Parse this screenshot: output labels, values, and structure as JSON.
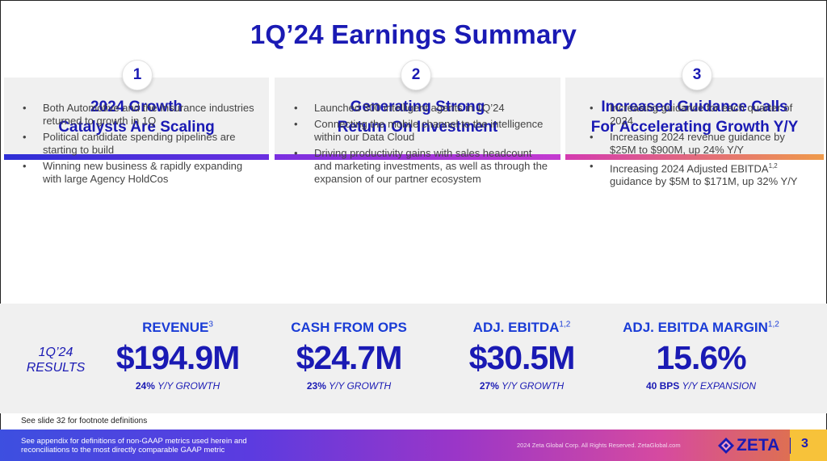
{
  "title": "1Q’24 Earnings Summary",
  "columns": [
    {
      "number": "1",
      "title_line1": "2024 Growth",
      "title_line2": "Catalysts Are Scaling",
      "bullets": [
        "Both Automotive and the Insurance industries returned to growth in 1Q",
        "Political candidate spending pipelines are starting to build",
        "Winning new business & rapidly expanding with large Agency HoldCos"
      ]
    },
    {
      "number": "2",
      "title_line1": "Generating Strong",
      "title_line2": "Return On Investment",
      "bullets": [
        "Launched 300 intelligent agents in 1Q’24",
        "Connecting the mobile channel to the intelligence within our Data Cloud",
        "Driving productivity gains with sales headcount and marketing investments, as well as through the expansion of our partner ecosystem"
      ]
    },
    {
      "number": "3",
      "title_line1": "Increased Guidance Calls",
      "title_line2": "For Accelerating Growth Y/Y",
      "bullets": [
        "Increasing guidance for each quarter of 2024",
        "Increasing 2024 revenue guidance by $25M to $900M, up 24% Y/Y",
        "Increasing 2024 Adjusted EBITDA",
        "guidance by $5M to $171M, up 32% Y/Y"
      ],
      "bullet3_sup": "1,2"
    }
  ],
  "results": {
    "label_line1": "1Q’24",
    "label_line2": "RESULTS",
    "metrics": [
      {
        "label": "REVENUE",
        "sup": "3",
        "value": "$194.9M",
        "sub_bold": "24%",
        "sub_text": "Y/Y GROWTH"
      },
      {
        "label": "CASH FROM OPS",
        "sup": "",
        "value": "$24.7M",
        "sub_bold": "23%",
        "sub_text": "Y/Y GROWTH"
      },
      {
        "label": "ADJ. EBITDA",
        "sup": "1,2",
        "value": "$30.5M",
        "sub_bold": "27%",
        "sub_text": "Y/Y GROWTH"
      },
      {
        "label": "ADJ. EBITDA MARGIN",
        "sup": "1,2",
        "value": "15.6%",
        "sub_bold": "40 BPS",
        "sub_text": "Y/Y EXPANSION"
      }
    ]
  },
  "footnote": "See slide 32 for footnote definitions",
  "footer": {
    "left_line1": "See appendix for definitions of non-GAAP metrics used herein and",
    "left_line2": "reconciliations to the most directly comparable GAAP metric",
    "copyright": "2024 Zeta Global Corp. All Rights Reserved. ZetaGlobal.com",
    "logo_text": "ZETA",
    "page_number": "3"
  },
  "colors": {
    "brand_blue": "#1a1ab4",
    "bar1": "#3a2fd8",
    "bar2": "#b23ad6",
    "bar3": "#e96a8e",
    "footer_gradient_start": "#3d4fe0",
    "footer_gradient_end": "#e07a3c",
    "page_tab": "#f7c23a"
  }
}
